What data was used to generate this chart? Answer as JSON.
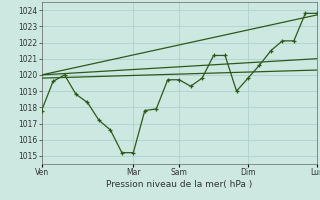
{
  "bg_color": "#cce8e0",
  "grid_color": "#aacccc",
  "line_color": "#2d5a1b",
  "marker_color": "#2d5a1b",
  "xlabel": "Pression niveau de la mer( hPa )",
  "ylim_bottom": 1014.5,
  "ylim_top": 1024.5,
  "yticks": [
    1015,
    1016,
    1017,
    1018,
    1019,
    1020,
    1021,
    1022,
    1023,
    1024
  ],
  "x_tick_labels": [
    "Ven",
    "Mar",
    "Sam",
    "Dim",
    "Lun"
  ],
  "x_tick_positions": [
    0,
    8,
    12,
    18,
    24
  ],
  "series": {
    "line1_x": [
      0,
      1,
      2,
      3,
      4,
      5,
      6,
      7,
      8,
      9,
      10,
      11,
      12,
      13,
      14,
      15,
      16,
      17,
      18,
      19,
      20,
      21,
      22,
      23,
      24
    ],
    "line1_y": [
      1017.8,
      1019.6,
      1020.0,
      1018.8,
      1018.3,
      1017.2,
      1016.6,
      1015.2,
      1015.2,
      1017.8,
      1017.9,
      1019.7,
      1019.7,
      1019.3,
      1019.8,
      1021.2,
      1021.2,
      1019.0,
      1019.8,
      1020.6,
      1021.5,
      1022.1,
      1022.1,
      1023.8,
      1023.8
    ],
    "line2_x": [
      0,
      24
    ],
    "line2_y": [
      1020.0,
      1023.7
    ],
    "line3_x": [
      0,
      24
    ],
    "line3_y": [
      1020.0,
      1021.0
    ],
    "line4_x": [
      0,
      24
    ],
    "line4_y": [
      1019.8,
      1020.3
    ]
  }
}
